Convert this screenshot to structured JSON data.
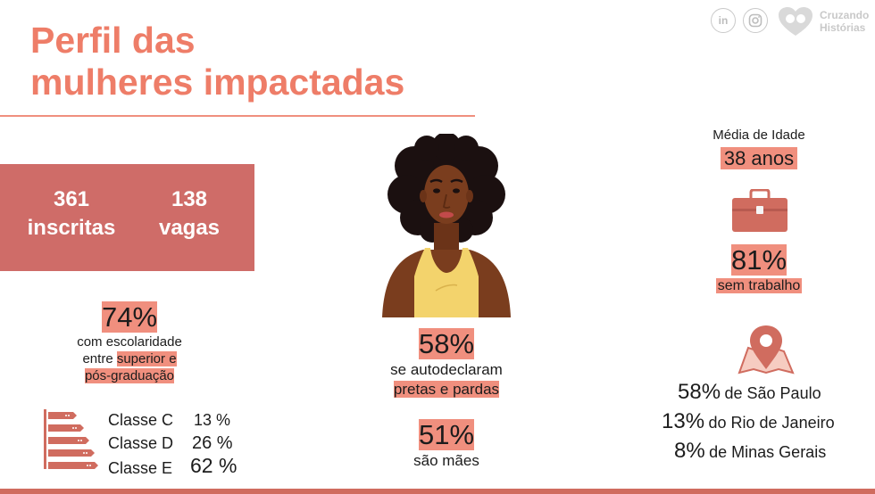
{
  "title": {
    "line1": "Perfil das",
    "line2": "mulheres impactadas"
  },
  "brand": {
    "line1": "Cruzando",
    "line2": "Histórias",
    "icons": [
      "linkedin-icon",
      "instagram-icon",
      "heart-logo-icon"
    ]
  },
  "stats": {
    "inscritas": {
      "value": "361",
      "label": "inscritas"
    },
    "vagas": {
      "value": "138",
      "label": "vagas"
    }
  },
  "education": {
    "percent": "74%",
    "line1": "com escolaridade",
    "line2a": "entre ",
    "line2b": "superior e",
    "line3": "pós-graduação"
  },
  "classes": [
    {
      "label": "Classe C",
      "percent": "13 %"
    },
    {
      "label": "Classe D",
      "percent": "26 %"
    },
    {
      "label": "Classe E",
      "percent": "62 %"
    }
  ],
  "race": {
    "percent": "58%",
    "line1": "se autodeclaram",
    "line2": "pretas e pardas"
  },
  "mothers": {
    "percent": "51%",
    "label": "são mães"
  },
  "age": {
    "label": "Média de Idade",
    "value": "38 anos"
  },
  "work": {
    "percent": "81%",
    "label": "sem trabalho"
  },
  "locations": [
    {
      "percent": "58%",
      "name": "de São Paulo"
    },
    {
      "percent": "13%",
      "name": "do Rio de Janeiro"
    },
    {
      "percent": "8%",
      "name": "de Minas Gerais"
    }
  ],
  "colors": {
    "accent": "#ee7d68",
    "highlight": "#f08f7e",
    "box": "#cf6c68",
    "skin": "#7a3d1e",
    "hair": "#1b1010",
    "top": "#f3d36c"
  }
}
